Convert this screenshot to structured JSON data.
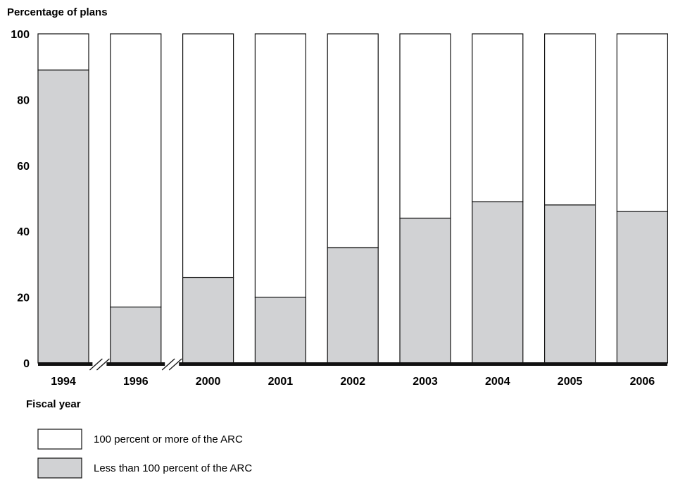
{
  "chart_data": {
    "type": "bar",
    "stacked": true,
    "title": "",
    "ylabel": "Percentage of plans",
    "xlabel": "Fiscal year",
    "ylim": [
      0,
      100
    ],
    "yticks": [
      "0",
      "20",
      "40",
      "60",
      "80",
      "100"
    ],
    "categories": [
      "1994",
      "1996",
      "2000",
      "2001",
      "2002",
      "2003",
      "2004",
      "2005",
      "2006"
    ],
    "axis_breaks_after": [
      "1994",
      "1996"
    ],
    "series": [
      {
        "name": "Less than 100 percent of the ARC",
        "color": "#d1d2d4",
        "values": [
          89,
          17,
          26,
          20,
          35,
          44,
          49,
          48,
          46
        ]
      },
      {
        "name": "100 percent or more of the ARC",
        "color": "#ffffff",
        "values": [
          11,
          83,
          74,
          80,
          65,
          56,
          51,
          52,
          54
        ]
      }
    ],
    "legend": {
      "placement": "bottom-left",
      "items": [
        "100 percent or more of the ARC",
        "Less than 100 percent of the ARC"
      ]
    },
    "grid": false
  }
}
